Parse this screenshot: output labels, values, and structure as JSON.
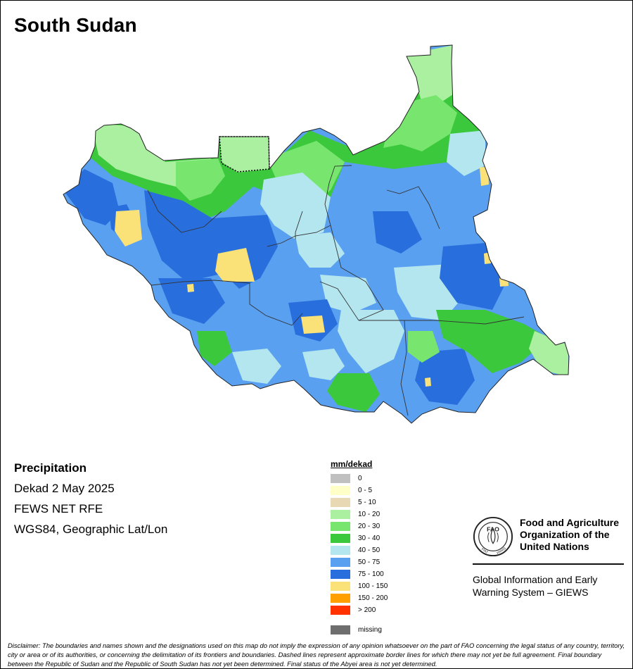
{
  "title": "South Sudan",
  "info": {
    "heading": "Precipitation",
    "period": "Dekad 2 May 2025",
    "source": "FEWS NET RFE",
    "projection": "WGS84, Geographic Lat/Lon"
  },
  "legend": {
    "heading": "mm/dekad",
    "classes": [
      {
        "label": "0",
        "color": "#c0c0c0"
      },
      {
        "label": "0 - 5",
        "color": "#ffffc8"
      },
      {
        "label": "5 - 10",
        "color": "#e8d8b4"
      },
      {
        "label": "10 - 20",
        "color": "#aaf0a0"
      },
      {
        "label": "20 - 30",
        "color": "#78e66e"
      },
      {
        "label": "30 - 40",
        "color": "#3cc83c"
      },
      {
        "label": "40 - 50",
        "color": "#b4e6f0"
      },
      {
        "label": "50 - 75",
        "color": "#5aa0f0"
      },
      {
        "label": "75 - 100",
        "color": "#286edc"
      },
      {
        "label": "100 - 150",
        "color": "#fae178"
      },
      {
        "label": "150 - 200",
        "color": "#ffa000"
      },
      {
        "label": "> 200",
        "color": "#ff3200"
      }
    ],
    "missing": {
      "label": "missing",
      "color": "#6e6e6e"
    }
  },
  "organization": {
    "name_line1": "Food and Agriculture",
    "name_line2": "Organization of the",
    "name_line3": "United Nations",
    "logo_text": "FAO",
    "logo_motto_left": "FIAT",
    "logo_motto_right": "PANIS",
    "system_line1": "Global Information and Early",
    "system_line2": "Warning System – GIEWS"
  },
  "disclaimer": "Disclaimer: The boundaries and names shown and the designations used on this map do not imply the expression of any opinion whatsoever on the part of FAO concerning the legal status of any country, territory, city or area or of its authorities, or concerning the delimitation of its frontiers and boundaries. Dashed lines represent approximate border lines for which there may not yet be full agreement.  Final boundary between the Republic of Sudan and the Republic of South Sudan has not yet been determined. Final status of the Abyei area is not yet determined."
}
